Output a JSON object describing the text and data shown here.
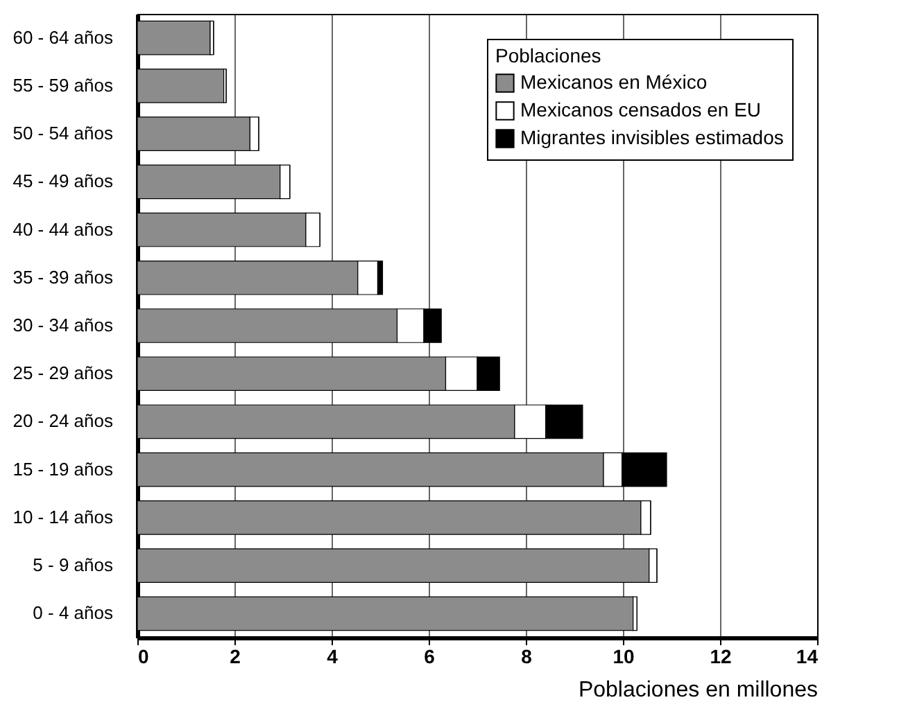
{
  "chart_data": {
    "type": "bar",
    "orientation": "horizontal",
    "stacked": true,
    "xlabel": "Poblaciones en millones",
    "legend_title": "Poblaciones",
    "categories": [
      "60 - 64 años",
      "55 - 59 años",
      "50 - 54 años",
      "45 - 49 años",
      "40 - 44 años",
      "35 - 39 años",
      "30 - 34 años",
      "25 - 29 años",
      "20 - 24 años",
      "15 - 19 años",
      "10 - 14 años",
      "5 - 9 años",
      "0 - 4 años"
    ],
    "series": [
      {
        "name": "Mexicanos en México",
        "color": "#8c8c8c",
        "values": [
          1.5,
          1.78,
          2.32,
          2.94,
          3.47,
          4.54,
          5.35,
          6.35,
          7.77,
          9.6,
          10.37,
          10.54,
          10.21
        ]
      },
      {
        "name": "Mexicanos censados en EU",
        "color": "#ffffff",
        "values": [
          0.07,
          0.05,
          0.18,
          0.2,
          0.29,
          0.41,
          0.55,
          0.65,
          0.64,
          0.38,
          0.2,
          0.16,
          0.08
        ]
      },
      {
        "name": "Migrantes invisibles estimados",
        "color": "#000000",
        "values": [
          0,
          0,
          0,
          0,
          0,
          0.1,
          0.36,
          0.46,
          0.76,
          0.92,
          0,
          0,
          0
        ]
      }
    ],
    "xlim": [
      0,
      14
    ],
    "xticks": [
      0,
      2,
      4,
      6,
      8,
      10,
      12,
      14
    ],
    "grid": "x",
    "legend": "top right"
  }
}
